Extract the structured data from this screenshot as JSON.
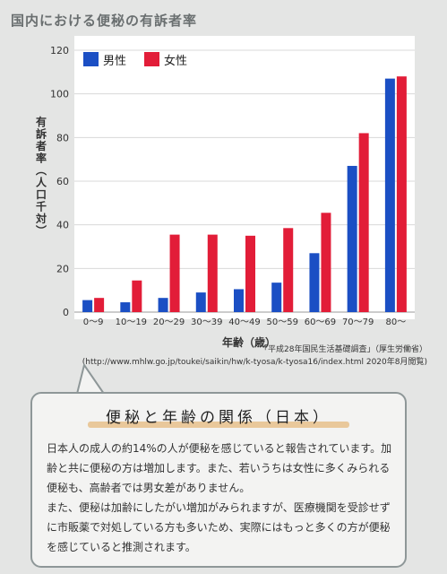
{
  "title": "国内における便秘の有訴者率",
  "ylabel_lines": [
    "有",
    "訴",
    "者",
    "率",
    "︵",
    "人",
    "口",
    "千",
    "対",
    "︶"
  ],
  "colors": {
    "male": "#1b4fc4",
    "female": "#e21d38",
    "grid": "#d8d8d8"
  },
  "chart_data": {
    "type": "bar",
    "title": "国内における便秘の有訴者率",
    "xlabel": "年齢（歳）",
    "ylabel": "有訴者率（人口千対）",
    "ylim": [
      0,
      120
    ],
    "yticks": [
      0,
      20,
      40,
      60,
      80,
      100,
      120
    ],
    "grid": true,
    "legend_position": "top-left",
    "categories": [
      "0〜9",
      "10〜19",
      "20〜29",
      "30〜39",
      "40〜49",
      "50〜59",
      "60〜69",
      "70〜79",
      "80〜"
    ],
    "series": [
      {
        "name": "男性",
        "values": [
          5.5,
          4.5,
          6.5,
          9,
          10.5,
          13.5,
          27,
          67,
          107
        ]
      },
      {
        "name": "女性",
        "values": [
          6.5,
          14.5,
          35.5,
          35.5,
          35,
          38.5,
          45.5,
          82,
          108
        ]
      }
    ]
  },
  "source": {
    "line1": "「平成28年国民生活基礎調査」（厚生労働省）",
    "line2": "(http://www.mhlw.go.jp/toukei/saikin/hw/k-tyosa/k-tyosa16/index.html 2020年8月閲覧)"
  },
  "info_box": {
    "heading": "便秘と年齢の関係（日本）",
    "paragraph1": "日本人の成人の約14%の人が便秘を感じていると報告されています。加齢と共に便秘の方は増加します。また、若いうちは女性に多くみられる便秘も、高齢者では男女差がありません。",
    "paragraph2": "また、便秘は加齢にしたがい増加がみられますが、医療機関を受診せずに市販薬で対処している方も多いため、実際にはもっと多くの方が便秘を感じていると推測されます。"
  }
}
